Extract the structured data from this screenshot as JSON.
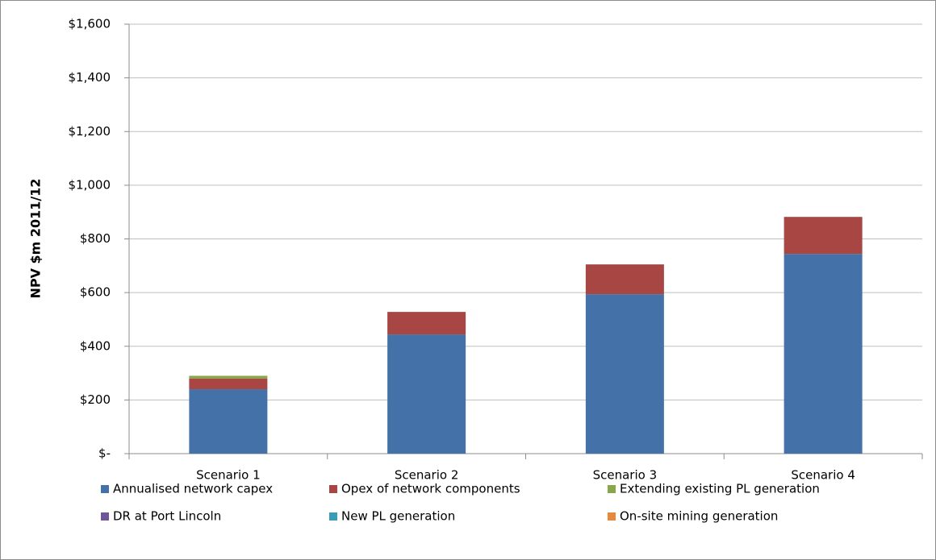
{
  "chart_data": {
    "type": "stacked_bar",
    "y_label": "NPV $m 2011/12",
    "categories": [
      "Scenario 1",
      "Scenario 2",
      "Scenario 3",
      "Scenario 4"
    ],
    "series": [
      {
        "name": "Annualised network capex",
        "color": "#4472a8",
        "values": [
          240,
          444,
          594,
          744
        ]
      },
      {
        "name": "Opex of network components",
        "color": "#a84643",
        "values": [
          40,
          84,
          111,
          138
        ]
      },
      {
        "name": "Extending existing PL generation",
        "color": "#8aa64a",
        "values": [
          10,
          0,
          0,
          0
        ]
      },
      {
        "name": "DR at Port Lincoln",
        "color": "#6f559a",
        "values": [
          0,
          0,
          0,
          0
        ]
      },
      {
        "name": "New PL generation",
        "color": "#3b9cb6",
        "values": [
          0,
          0,
          0,
          0
        ]
      },
      {
        "name": "On-site mining generation",
        "color": "#e8883a",
        "values": [
          0,
          0,
          0,
          0
        ]
      }
    ],
    "ylim": [
      0,
      1600
    ],
    "yticks": [
      {
        "value": 0,
        "label": "$-"
      },
      {
        "value": 200,
        "label": "$200"
      },
      {
        "value": 400,
        "label": "$400"
      },
      {
        "value": 600,
        "label": "$600"
      },
      {
        "value": 800,
        "label": "$800"
      },
      {
        "value": 1000,
        "label": "$1,000"
      },
      {
        "value": 1200,
        "label": "$1,200"
      },
      {
        "value": 1400,
        "label": "$1,400"
      },
      {
        "value": 1600,
        "label": "$1,600"
      }
    ],
    "grid": true,
    "legend": "bottom"
  }
}
